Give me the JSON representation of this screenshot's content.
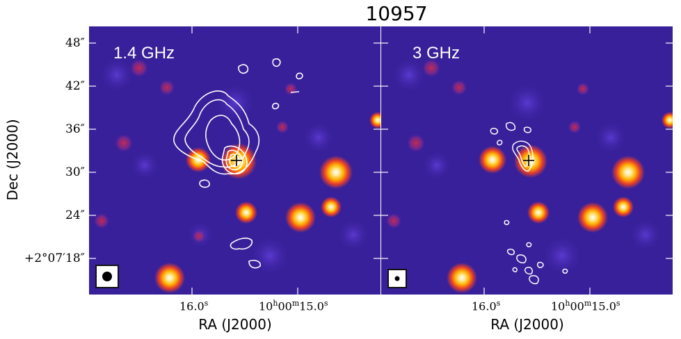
{
  "figure_title": "10957",
  "panels": [
    {
      "band_label": "1.4 GHz",
      "beam_size": "large"
    },
    {
      "band_label": "3 GHz",
      "beam_size": "small"
    }
  ],
  "axes": {
    "y_label": "Dec (J2000)",
    "x_label": "RA (J2000)",
    "dec_ticks": [
      "48″",
      "42″",
      "36″",
      "30″",
      "24″",
      "+2°07′18″"
    ],
    "ra_ticks": [
      {
        "main": "16.0",
        "sup": "s"
      },
      {
        "main": "10",
        "sup": "h",
        "main2": "00",
        "sup2": "m",
        "main3": "15.0",
        "sup3": "s"
      }
    ]
  },
  "colors": {
    "background": "#3a1f9a",
    "contour": "#ffffff",
    "source_hot": "#ffffff",
    "source_mid": "#ffc000",
    "source_edge": "#e03030"
  }
}
